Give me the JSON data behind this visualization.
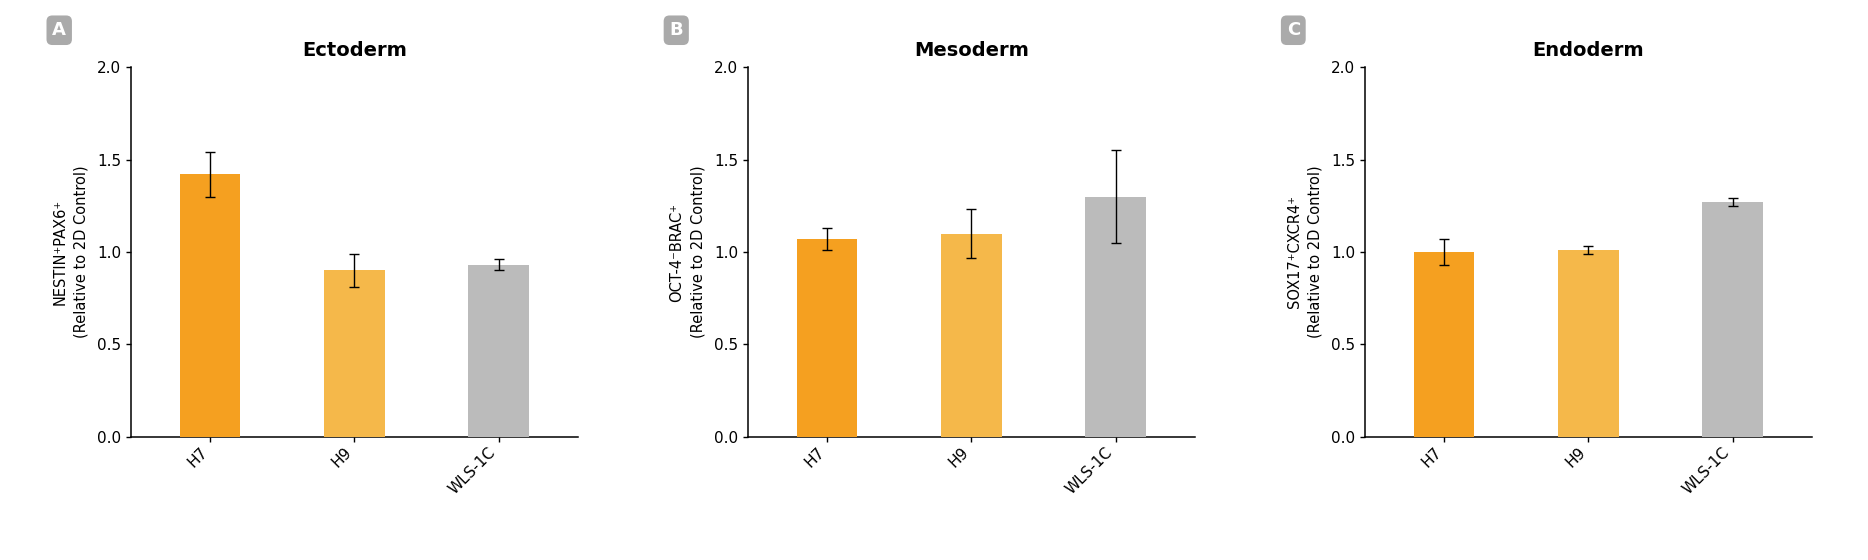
{
  "panels": [
    {
      "label": "A",
      "title": "Ectoderm",
      "ylabel_line1": "NESTIN⁺PAX6⁺",
      "ylabel_line2": "(Relative to 2D Control)",
      "categories": [
        "H7",
        "H9",
        "WLS-1C"
      ],
      "values": [
        1.42,
        0.9,
        0.93
      ],
      "errors": [
        0.12,
        0.09,
        0.03
      ],
      "colors": [
        "#F5A020",
        "#F5B84A",
        "#BBBBBB"
      ]
    },
    {
      "label": "B",
      "title": "Mesoderm",
      "ylabel_line1": "OCT-4⁻BRAC⁺",
      "ylabel_line2": "(Relative to 2D Control)",
      "categories": [
        "H7",
        "H9",
        "WLS-1C"
      ],
      "values": [
        1.07,
        1.1,
        1.3
      ],
      "errors": [
        0.06,
        0.13,
        0.25
      ],
      "colors": [
        "#F5A020",
        "#F5B84A",
        "#BBBBBB"
      ]
    },
    {
      "label": "C",
      "title": "Endoderm",
      "ylabel_line1": "SOX17⁺CXCR4⁺",
      "ylabel_line2": "(Relative to 2D Control)",
      "categories": [
        "H7",
        "H9",
        "WLS-1C"
      ],
      "values": [
        1.0,
        1.01,
        1.27
      ],
      "errors": [
        0.07,
        0.02,
        0.02
      ],
      "colors": [
        "#F5A020",
        "#F5B84A",
        "#BBBBBB"
      ]
    }
  ],
  "ylim": [
    0,
    2.0
  ],
  "yticks": [
    0.0,
    0.5,
    1.0,
    1.5,
    2.0
  ],
  "background_color": "#FFFFFF",
  "bar_width": 0.42,
  "panel_label_bg": "#AAAAAA",
  "title_fontsize": 14,
  "ylabel_fontsize": 10.5,
  "tick_fontsize": 11,
  "xtick_fontsize": 11
}
